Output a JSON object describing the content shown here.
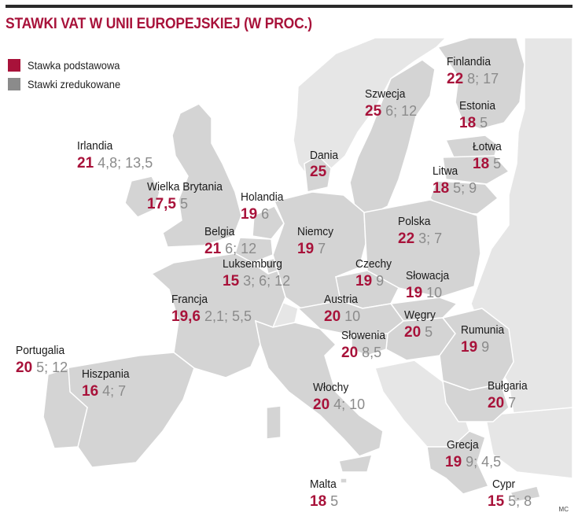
{
  "title": "STAWKI VAT W UNII EUROPEJSKIEJ (W PROC.)",
  "legend": {
    "standard": {
      "label": "Stawka podstawowa",
      "color": "#a8123a"
    },
    "reduced": {
      "label": "Stawki zredukowane",
      "color": "#8b8b8b"
    }
  },
  "credit": "MC",
  "colors": {
    "eu_land": "#d4d4d4",
    "non_eu_land": "#e6e6e6",
    "sea": "#ffffff",
    "border": "#ffffff"
  },
  "countries": [
    {
      "id": "finlandia",
      "name": "Finlandia",
      "standard": "22",
      "reduced": "8; 17"
    },
    {
      "id": "szwecja",
      "name": "Szwecja",
      "standard": "25",
      "reduced": "6; 12"
    },
    {
      "id": "estonia",
      "name": "Estonia",
      "standard": "18",
      "reduced": "5"
    },
    {
      "id": "irlandia",
      "name": "Irlandia",
      "standard": "21",
      "reduced": "4,8; 13,5"
    },
    {
      "id": "dania",
      "name": "Dania",
      "standard": "25",
      "reduced": ""
    },
    {
      "id": "lotwa",
      "name": "Łotwa",
      "standard": "18",
      "reduced": "5"
    },
    {
      "id": "wielka-brytania",
      "name": "Wielka Brytania",
      "standard": "17,5",
      "reduced": "5"
    },
    {
      "id": "litwa",
      "name": "Litwa",
      "standard": "18",
      "reduced": "5; 9"
    },
    {
      "id": "holandia",
      "name": "Holandia",
      "standard": "19",
      "reduced": "6"
    },
    {
      "id": "polska",
      "name": "Polska",
      "standard": "22",
      "reduced": "3; 7"
    },
    {
      "id": "belgia",
      "name": "Belgia",
      "standard": "21",
      "reduced": "6; 12"
    },
    {
      "id": "niemcy",
      "name": "Niemcy",
      "standard": "19",
      "reduced": "7"
    },
    {
      "id": "luksemburg",
      "name": "Luksemburg",
      "standard": "15",
      "reduced": "3; 6; 12"
    },
    {
      "id": "czechy",
      "name": "Czechy",
      "standard": "19",
      "reduced": "9"
    },
    {
      "id": "slowacja",
      "name": "Słowacja",
      "standard": "19",
      "reduced": "10"
    },
    {
      "id": "francja",
      "name": "Francja",
      "standard": "19,6",
      "reduced": "2,1; 5,5"
    },
    {
      "id": "austria",
      "name": "Austria",
      "standard": "20",
      "reduced": "10"
    },
    {
      "id": "wegry",
      "name": "Węgry",
      "standard": "20",
      "reduced": "5"
    },
    {
      "id": "slowenia",
      "name": "Słowenia",
      "standard": "20",
      "reduced": "8,5"
    },
    {
      "id": "rumunia",
      "name": "Rumunia",
      "standard": "19",
      "reduced": "9"
    },
    {
      "id": "portugalia",
      "name": "Portugalia",
      "standard": "20",
      "reduced": "5; 12"
    },
    {
      "id": "hiszpania",
      "name": "Hiszpania",
      "standard": "16",
      "reduced": "4; 7"
    },
    {
      "id": "wlochy",
      "name": "Włochy",
      "standard": "20",
      "reduced": "4; 10"
    },
    {
      "id": "bulgaria",
      "name": "Bułgaria",
      "standard": "20",
      "reduced": "7"
    },
    {
      "id": "grecja",
      "name": "Grecja",
      "standard": "19",
      "reduced": "9; 4,5"
    },
    {
      "id": "malta",
      "name": "Malta",
      "standard": "18",
      "reduced": "5"
    },
    {
      "id": "cypr",
      "name": "Cypr",
      "standard": "15",
      "reduced": "5; 8"
    }
  ]
}
